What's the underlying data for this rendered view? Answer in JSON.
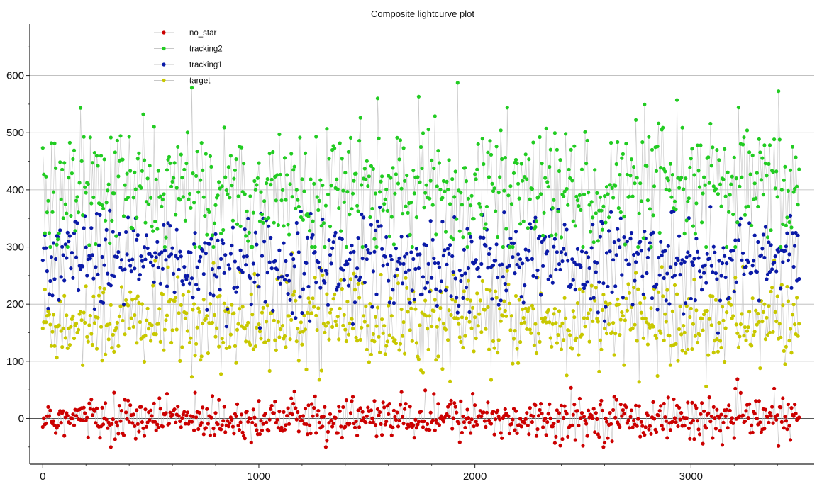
{
  "chart_data": {
    "type": "scatter",
    "title": "Composite lightcurve plot",
    "xlabel": "",
    "ylabel": "",
    "xlim": [
      -60,
      3570
    ],
    "ylim": [
      -80,
      690
    ],
    "x_ticks": [
      0,
      1000,
      2000,
      3000
    ],
    "y_ticks": [
      0,
      100,
      200,
      300,
      400,
      500,
      600
    ],
    "grid": {
      "horizontal": true,
      "vertical": false
    },
    "legend_position": "top-left",
    "x_range_points": [
      0,
      3500
    ],
    "connector_color": "#c8c8c8",
    "series": [
      {
        "name": "no_star",
        "color": "#cc0000",
        "center": 0,
        "spread": 18,
        "min": -50,
        "max": 95
      },
      {
        "name": "tracking2",
        "color": "#22cc22",
        "center": 400,
        "spread": 55,
        "min": 300,
        "max": 655
      },
      {
        "name": "tracking1",
        "color": "#0a1aa8",
        "center": 275,
        "spread": 40,
        "min": 75,
        "max": 465
      },
      {
        "name": "target",
        "color": "#c8c800",
        "center": 170,
        "spread": 40,
        "min": 40,
        "max": 345
      }
    ]
  }
}
